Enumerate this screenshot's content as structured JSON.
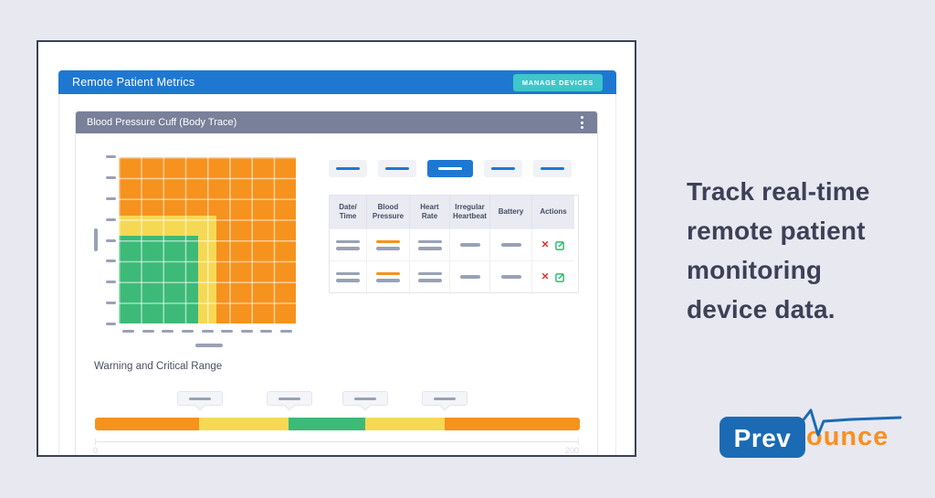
{
  "app": {
    "title": "Remote Patient Metrics",
    "manage_button_label": "MANAGE DEVICES",
    "device_card_title": "Blood Pressure Cuff (Body Trace)"
  },
  "tabs": {
    "count": 5,
    "active_index": 2
  },
  "table": {
    "columns": [
      "Date/ Time",
      "Blood Pressure",
      "Heart Rate",
      "Irregular Heartbeat",
      "Battery",
      "Actions"
    ],
    "row_count": 2,
    "row_style": "placeholder dashes; Blood Pressure first dash is orange",
    "action_icons": [
      "delete-x",
      "edit-pencil-square"
    ]
  },
  "range_section": {
    "title": "Warning and Critical Range",
    "axis_min": "0",
    "axis_max": "200",
    "tooltip_count": 4
  },
  "marketing": {
    "headline": "Track real-time remote patient monitoring device data."
  },
  "logo": {
    "prefix": "Prev",
    "suffix": "ounce"
  },
  "colors": {
    "page_bg": "#e8e8f1",
    "header_blue": "#1e78d2",
    "teal_button": "#3ec6cb",
    "panel_gray": "#78809a",
    "critical_orange": "#f6921e",
    "warning_yellow": "#f5d954",
    "normal_green": "#3dba78",
    "placeholder_dash": "#9aa1b6",
    "delete_red": "#dd3333",
    "edit_green": "#2eb873",
    "card_border": "#3a4254",
    "headline_text": "#3d4056",
    "logo_blue": "#1a6bb4",
    "logo_orange": "#f6911f"
  },
  "chart_data": {
    "type": "heatmap",
    "title": "",
    "description": "Blood-pressure range zone chart: orange critical field with nested yellow warning and green normal zones anchored bottom-left; 8x8 white gridlines; placeholder dashes for axis tick labels",
    "grid": {
      "cols": 8,
      "rows": 8
    },
    "zones": {
      "warning_width_pct": 55,
      "warning_height_pct": 65,
      "normal_width_pct": 45,
      "normal_height_pct": 53
    },
    "slider": {
      "min": 0,
      "max": 200,
      "segments": [
        {
          "zone": "critical",
          "color": "#f6921e",
          "width_pct": 21.5
        },
        {
          "zone": "warning",
          "color": "#f5d954",
          "width_pct": 18.5
        },
        {
          "zone": "normal",
          "color": "#3dba78",
          "width_pct": 15.7
        },
        {
          "zone": "warning",
          "color": "#f5d954",
          "width_pct": 16.4
        },
        {
          "zone": "critical",
          "color": "#f6921e",
          "width_pct": 27.9
        }
      ],
      "handle_positions_value": [
        43,
        80,
        111,
        144
      ]
    }
  }
}
